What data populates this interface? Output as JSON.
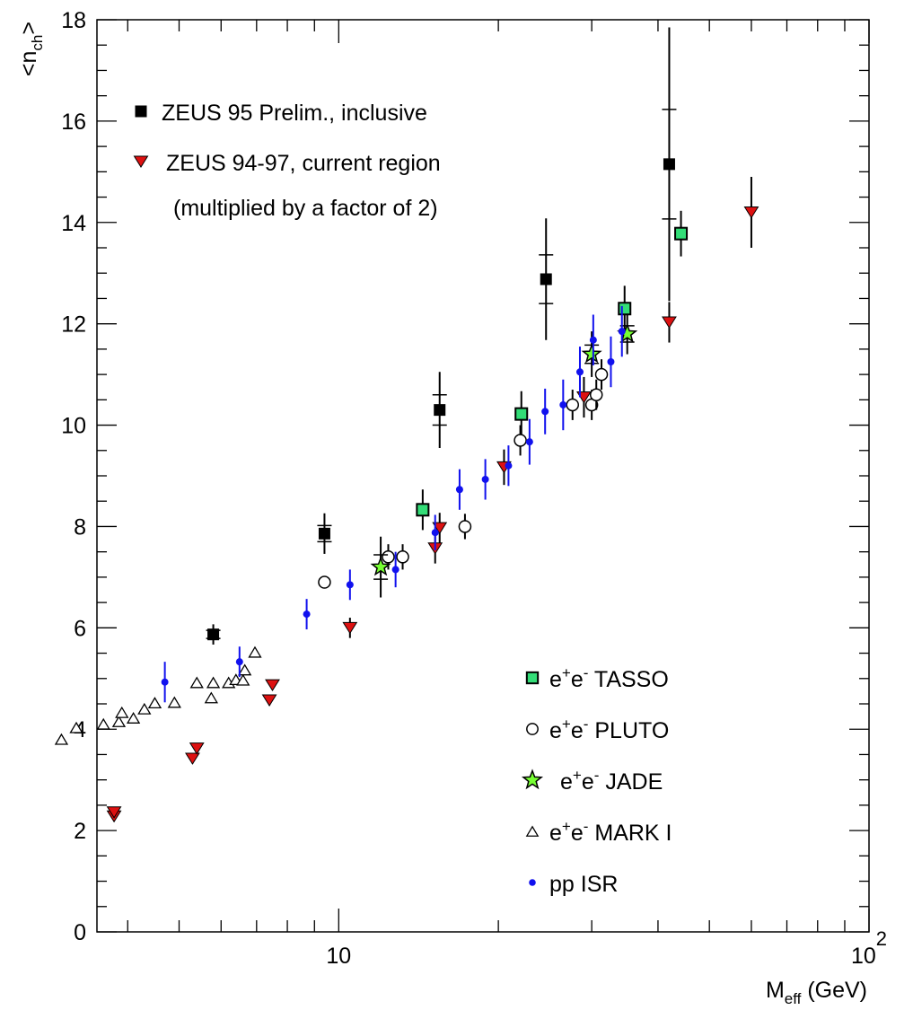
{
  "chart_data": {
    "type": "scatter",
    "xscale": "log",
    "xlim": [
      3.5,
      100
    ],
    "ylim": [
      0,
      18
    ],
    "grid": false,
    "legend_placement": "top-left and lower-right",
    "x_tick_labels": [
      {
        "value": 10,
        "label": "10"
      },
      {
        "value": 100,
        "label": "10",
        "exp": "2"
      }
    ],
    "y_ticks": [
      0,
      2,
      4,
      6,
      8,
      10,
      12,
      14,
      16,
      18
    ],
    "xlabel": {
      "main": "M",
      "sub": "eff",
      "rest": " (GeV)"
    },
    "ylabel": {
      "pre": "<n",
      "sub": "ch",
      "post": ">"
    },
    "series": [
      {
        "name": "ZEUS 95 Prelim., inclusive",
        "marker": "filled-square",
        "color": "#000000",
        "points": [
          {
            "x": 5.8,
            "y": 5.87,
            "err": 0.2
          },
          {
            "x": 9.4,
            "y": 7.86,
            "err": 0.4
          },
          {
            "x": 15.5,
            "y": 10.3,
            "err": 0.75
          },
          {
            "x": 24.6,
            "y": 12.88,
            "err": 1.2
          },
          {
            "x": 42,
            "y": 15.15,
            "err": 2.7
          }
        ]
      },
      {
        "name": "ZEUS 94-97, current region",
        "name_line2": "(multiplied by a factor of 2)",
        "marker": "down-triangle",
        "color": "#dd1111",
        "points": [
          {
            "x": 3.77,
            "y": 2.28,
            "err": 0.1
          },
          {
            "x": 3.77,
            "y": 2.36,
            "err": 0.1
          },
          {
            "x": 5.3,
            "y": 3.42,
            "err": 0.1
          },
          {
            "x": 5.4,
            "y": 3.62,
            "err": 0.1
          },
          {
            "x": 7.4,
            "y": 4.57,
            "err": 0.1
          },
          {
            "x": 7.5,
            "y": 4.87,
            "err": 0.1
          },
          {
            "x": 10.5,
            "y": 6.0,
            "err": 0.2
          },
          {
            "x": 15.2,
            "y": 7.57,
            "err": 0.3
          },
          {
            "x": 15.5,
            "y": 7.97,
            "err": 0.3
          },
          {
            "x": 20.5,
            "y": 9.17,
            "err": 0.35
          },
          {
            "x": 29,
            "y": 10.55,
            "err": 0.4
          },
          {
            "x": 42,
            "y": 12.03,
            "err": 0.4
          },
          {
            "x": 60,
            "y": 14.2,
            "err": 0.7
          }
        ]
      },
      {
        "name": "e+e- TASSO",
        "marker": "open-square-green",
        "color": "#33dd77",
        "points": [
          {
            "x": 14.4,
            "y": 8.33,
            "err": 0.4
          },
          {
            "x": 22.1,
            "y": 10.22,
            "err": 0.45
          },
          {
            "x": 34.6,
            "y": 12.3,
            "err": 0.45
          },
          {
            "x": 44.2,
            "y": 13.78,
            "err": 0.45
          }
        ]
      },
      {
        "name": "e+e- PLUTO",
        "marker": "open-circle",
        "color": "#000000",
        "points": [
          {
            "x": 9.4,
            "y": 6.9
          },
          {
            "x": 12.4,
            "y": 7.4,
            "err": 0.25
          },
          {
            "x": 13.2,
            "y": 7.4,
            "err": 0.25
          },
          {
            "x": 17.3,
            "y": 8.0,
            "err": 0.25
          },
          {
            "x": 22.0,
            "y": 9.7,
            "err": 0.3
          },
          {
            "x": 27.6,
            "y": 10.4,
            "err": 0.3
          },
          {
            "x": 30.0,
            "y": 10.4,
            "err": 0.3
          },
          {
            "x": 30.6,
            "y": 10.6,
            "err": 0.3
          },
          {
            "x": 31.3,
            "y": 11.0,
            "err": 0.3
          }
        ]
      },
      {
        "name": "e+e- JADE",
        "marker": "star",
        "color": "#77ff33",
        "points": [
          {
            "x": 12.0,
            "y": 7.2,
            "err": 0.6
          },
          {
            "x": 30.0,
            "y": 11.4,
            "err": 0.45
          },
          {
            "x": 35.0,
            "y": 11.8,
            "err": 0.4
          }
        ]
      },
      {
        "name": "e+e- MARK I",
        "marker": "open-triangle",
        "color": "#000000",
        "points": [
          {
            "x": 3.0,
            "y": 3.8
          },
          {
            "x": 3.2,
            "y": 4.03
          },
          {
            "x": 3.6,
            "y": 4.1
          },
          {
            "x": 3.85,
            "y": 4.15
          },
          {
            "x": 3.9,
            "y": 4.33
          },
          {
            "x": 4.1,
            "y": 4.22
          },
          {
            "x": 4.3,
            "y": 4.4
          },
          {
            "x": 4.5,
            "y": 4.52
          },
          {
            "x": 4.9,
            "y": 4.53
          },
          {
            "x": 5.4,
            "y": 4.92
          },
          {
            "x": 5.8,
            "y": 4.92
          },
          {
            "x": 5.75,
            "y": 4.62
          },
          {
            "x": 6.2,
            "y": 4.92
          },
          {
            "x": 6.4,
            "y": 4.98
          },
          {
            "x": 6.6,
            "y": 4.97
          },
          {
            "x": 6.65,
            "y": 5.17
          },
          {
            "x": 6.95,
            "y": 5.52
          }
        ]
      },
      {
        "name": "pp ISR",
        "marker": "filled-circle-small",
        "color": "#1111ee",
        "points": [
          {
            "x": 4.7,
            "y": 4.93,
            "err": 0.4
          },
          {
            "x": 6.5,
            "y": 5.33,
            "err": 0.3
          },
          {
            "x": 8.7,
            "y": 6.27,
            "err": 0.3
          },
          {
            "x": 10.5,
            "y": 6.85,
            "err": 0.3
          },
          {
            "x": 12.8,
            "y": 7.15,
            "err": 0.35
          },
          {
            "x": 15.2,
            "y": 7.88,
            "err": 0.35
          },
          {
            "x": 16.9,
            "y": 8.73,
            "err": 0.4
          },
          {
            "x": 18.9,
            "y": 8.93,
            "err": 0.4
          },
          {
            "x": 20.9,
            "y": 9.2,
            "err": 0.4
          },
          {
            "x": 22.9,
            "y": 9.67,
            "err": 0.45
          },
          {
            "x": 24.5,
            "y": 10.27,
            "err": 0.45
          },
          {
            "x": 26.5,
            "y": 10.4,
            "err": 0.5
          },
          {
            "x": 28.5,
            "y": 11.05,
            "err": 0.5
          },
          {
            "x": 30.2,
            "y": 11.68,
            "err": 0.5
          },
          {
            "x": 32.6,
            "y": 11.25,
            "err": 0.5
          },
          {
            "x": 34.2,
            "y": 11.85,
            "err": 0.5
          }
        ]
      }
    ],
    "legend": {
      "top": [
        {
          "series": 0,
          "text": "ZEUS 95 Prelim., inclusive"
        },
        {
          "series": 1,
          "text": "ZEUS 94-97, current region",
          "text2": "(multiplied by a factor of 2)"
        }
      ],
      "bottom": [
        {
          "series": 2,
          "pre": "e",
          "sup1": "+",
          "mid": "e",
          "sup2": "-",
          "post": " TASSO"
        },
        {
          "series": 3,
          "pre": "e",
          "sup1": "+",
          "mid": "e",
          "sup2": "-",
          "post": " PLUTO"
        },
        {
          "series": 4,
          "pre": "e",
          "sup1": "+",
          "mid": "e",
          "sup2": "-",
          "post": " JADE"
        },
        {
          "series": 5,
          "pre": "e",
          "sup1": "+",
          "mid": "e",
          "sup2": "-",
          "post": " MARK I"
        },
        {
          "series": 6,
          "pre": "pp ISR"
        }
      ]
    }
  }
}
